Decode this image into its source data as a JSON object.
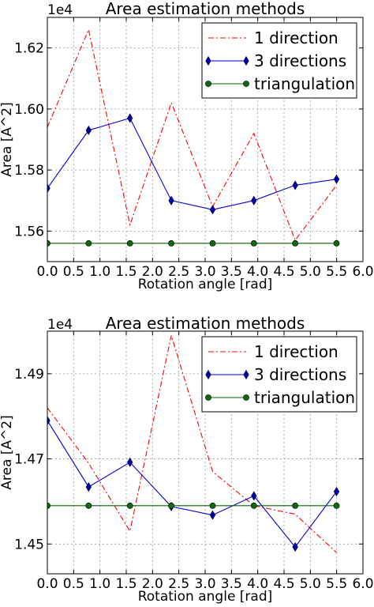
{
  "colors": {
    "one_direction": "#ff0000",
    "three_directions": "#0000cc",
    "triangulation": "#006400",
    "marker_fill_three": "#0000aa",
    "marker_fill_tri": "#0d6b0d",
    "grid": "#999999",
    "background": "#ffffff"
  },
  "chart_data": [
    {
      "type": "line",
      "title": "Area estimation methods",
      "xlabel": "Rotation angle [rad]",
      "ylabel": "Area [A^2]",
      "offset_label": "1e4",
      "xlim": [
        0.0,
        6.0
      ],
      "ylim": [
        1.55,
        1.63
      ],
      "x_ticks": [
        0.0,
        0.5,
        1.0,
        1.5,
        2.0,
        2.5,
        3.0,
        3.5,
        4.0,
        4.5,
        5.0,
        5.5,
        6.0
      ],
      "x_tick_labels": [
        "0.0",
        "0.5",
        "1.0",
        "1.5",
        "2.0",
        "2.5",
        "3.0",
        "3.5",
        "4.0",
        "4.5",
        "5.0",
        "5.5",
        "6.0"
      ],
      "y_ticks": [
        1.56,
        1.58,
        1.6,
        1.62
      ],
      "y_tick_labels": [
        "1.56",
        "1.58",
        "1.60",
        "1.62"
      ],
      "grid": true,
      "legend_position": "top-right",
      "series": [
        {
          "name": "1 direction",
          "style": "dash-dot",
          "marker": "none",
          "x": [
            0.0,
            0.785,
            1.571,
            2.356,
            3.142,
            3.927,
            4.712,
            5.498
          ],
          "y": [
            1.594,
            1.626,
            1.562,
            1.602,
            1.568,
            1.592,
            1.557,
            1.575
          ]
        },
        {
          "name": "3 directions",
          "style": "solid",
          "marker": "diamond",
          "x": [
            0.0,
            0.785,
            1.571,
            2.356,
            3.142,
            3.927,
            4.712,
            5.498
          ],
          "y": [
            1.574,
            1.593,
            1.597,
            1.57,
            1.567,
            1.57,
            1.575,
            1.577
          ]
        },
        {
          "name": "triangulation",
          "style": "solid",
          "marker": "circle",
          "x": [
            0.0,
            0.785,
            1.571,
            2.356,
            3.142,
            3.927,
            4.712,
            5.498
          ],
          "y": [
            1.556,
            1.556,
            1.556,
            1.556,
            1.556,
            1.556,
            1.556,
            1.556
          ]
        }
      ]
    },
    {
      "type": "line",
      "title": "Area estimation methods",
      "xlabel": "Rotation angle [rad]",
      "ylabel": "Area [A^2]",
      "offset_label": "1e4",
      "xlim": [
        0.0,
        6.0
      ],
      "ylim": [
        1.443,
        1.5
      ],
      "x_ticks": [
        0.0,
        0.5,
        1.0,
        1.5,
        2.0,
        2.5,
        3.0,
        3.5,
        4.0,
        4.5,
        5.0,
        5.5,
        6.0
      ],
      "x_tick_labels": [
        "0.0",
        "0.5",
        "1.0",
        "1.5",
        "2.0",
        "2.5",
        "3.0",
        "3.5",
        "4.0",
        "4.5",
        "5.0",
        "5.5",
        "6.0"
      ],
      "y_ticks": [
        1.45,
        1.47,
        1.49
      ],
      "y_tick_labels": [
        "1.45",
        "1.47",
        "1.49"
      ],
      "grid": true,
      "legend_position": "top-right",
      "series": [
        {
          "name": "1 direction",
          "style": "dash-dot",
          "marker": "none",
          "x": [
            0.0,
            0.785,
            1.571,
            2.356,
            3.142,
            3.927,
            4.712,
            5.498
          ],
          "y": [
            1.482,
            1.469,
            1.453,
            1.499,
            1.467,
            1.459,
            1.457,
            1.448
          ]
        },
        {
          "name": "3 directions",
          "style": "solid",
          "marker": "diamond",
          "x": [
            0.0,
            0.785,
            1.571,
            2.356,
            3.142,
            3.927,
            4.712,
            5.498
          ],
          "y": [
            1.479,
            1.4634,
            1.4692,
            1.4588,
            1.4568,
            1.4613,
            1.4493,
            1.4623
          ]
        },
        {
          "name": "triangulation",
          "style": "solid",
          "marker": "circle",
          "x": [
            0.0,
            0.785,
            1.571,
            2.356,
            3.142,
            3.927,
            4.712,
            5.498
          ],
          "y": [
            1.459,
            1.459,
            1.459,
            1.459,
            1.459,
            1.459,
            1.459,
            1.459
          ]
        }
      ]
    }
  ]
}
